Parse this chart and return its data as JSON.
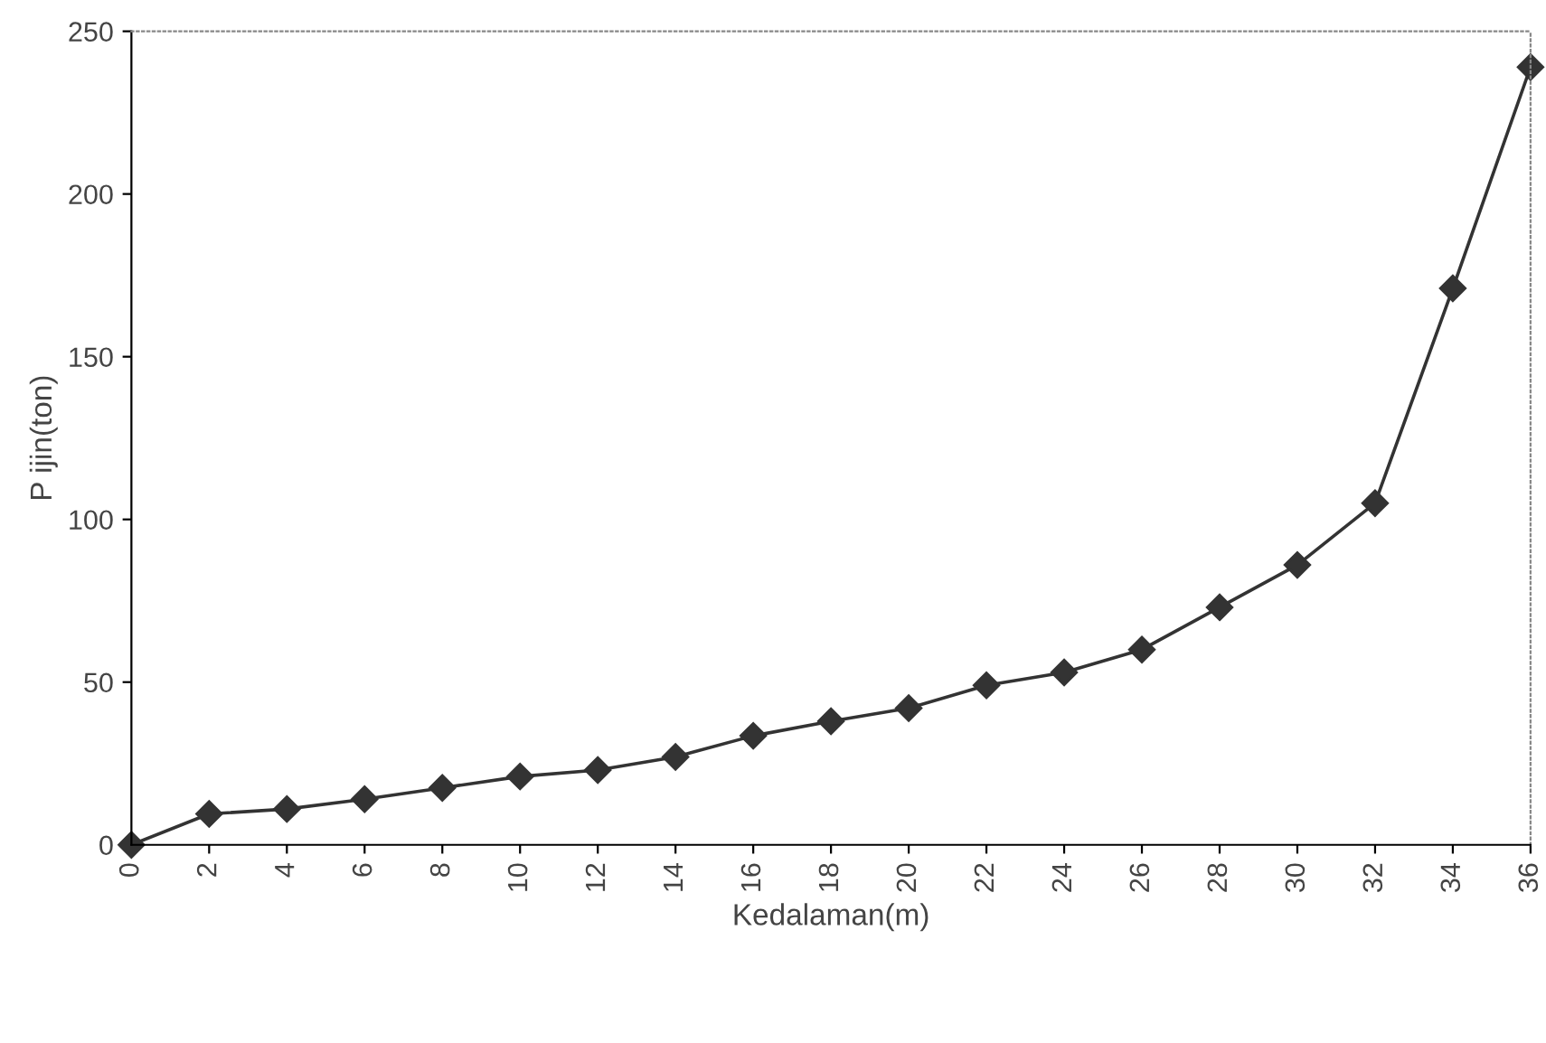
{
  "chart_data": {
    "type": "line",
    "xlabel": "Kedalaman(m)",
    "ylabel": "P ijin(ton)",
    "x": [
      0,
      2,
      4,
      6,
      8,
      10,
      12,
      14,
      16,
      18,
      20,
      22,
      24,
      26,
      28,
      30,
      32,
      34,
      36
    ],
    "series": [
      {
        "color": "#333333",
        "values": [
          0,
          9.5,
          11,
          14,
          17.5,
          21,
          23,
          27,
          33.5,
          38,
          42,
          49,
          53,
          60,
          73,
          86,
          105,
          171,
          239
        ]
      }
    ],
    "xlim": [
      0,
      36
    ],
    "xticks": [
      0,
      2,
      4,
      6,
      8,
      10,
      12,
      14,
      16,
      18,
      20,
      22,
      24,
      26,
      28,
      30,
      32,
      34,
      36
    ],
    "ylim": [
      0,
      250
    ],
    "yticks": [
      0,
      50,
      100,
      150,
      200,
      250
    ],
    "marker": "diamond",
    "line_style": "solid",
    "grid": false,
    "legend": false
  }
}
